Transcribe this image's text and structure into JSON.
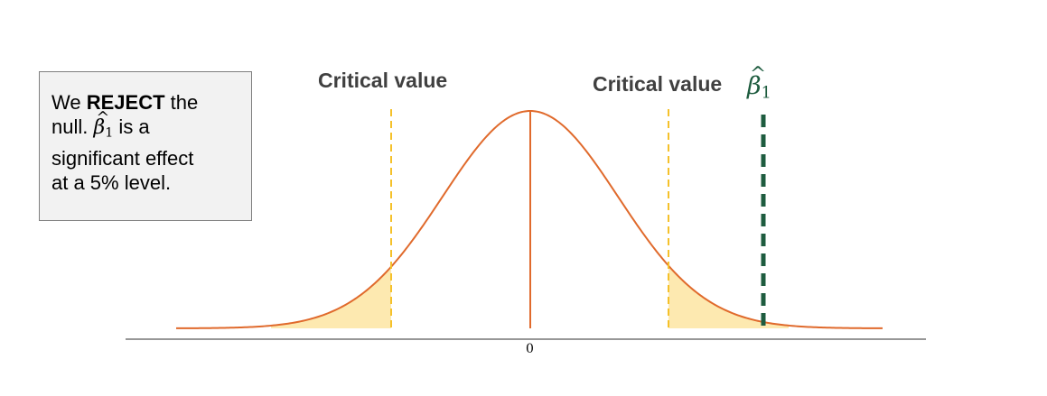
{
  "callout": {
    "line1_prefix": "We ",
    "line1_bold": "REJECT",
    "line1_suffix": " the",
    "line2_prefix": "null.",
    "beta_symbol": "β",
    "beta_hat": "^",
    "beta_subscript": "1",
    "line2_suffix": " is a",
    "line3": "significant effect",
    "line4": "at a 5% level."
  },
  "labels": {
    "critical_left": "Critical value",
    "critical_right": "Critical value",
    "beta_symbol": "β",
    "beta_hat": "^",
    "beta_subscript": "1",
    "axis_zero": "0"
  },
  "colors": {
    "curve": "#e06a2c",
    "critical_line": "#f5c12a",
    "tail_fill": "#fde9b0",
    "beta_line": "#1e5c3f",
    "axis": "#595959",
    "callout_bg": "#f2f2f2"
  }
}
